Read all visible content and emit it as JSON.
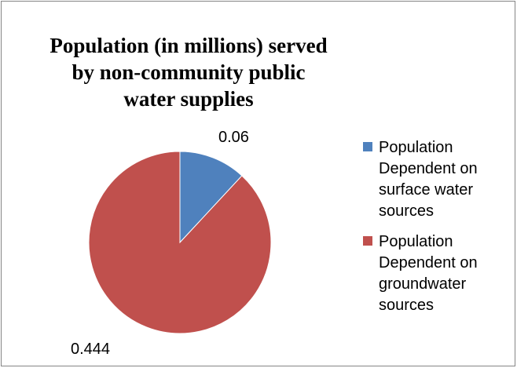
{
  "chart_data": {
    "type": "pie",
    "title": "Population (in millions) served by non-community public water supplies",
    "slices": [
      {
        "label": "Population Dependent on surface water sources",
        "value": 0.06,
        "value_label": "0.06",
        "color": "#4F81BD"
      },
      {
        "label": "Population Dependent on groundwater sources",
        "value": 0.444,
        "value_label": "0.444",
        "color": "#C0504D"
      }
    ],
    "legend_position": "right",
    "start_angle": "12 o'clock",
    "direction": "clockwise"
  }
}
